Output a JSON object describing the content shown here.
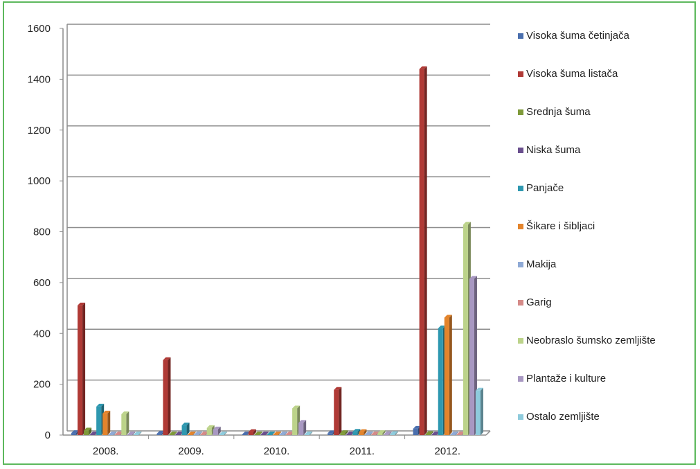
{
  "chart_data": {
    "type": "bar",
    "categories": [
      "2008.",
      "2009.",
      "2010.",
      "2011.",
      "2012."
    ],
    "ylim": [
      0,
      1600
    ],
    "yticks": [
      0,
      200,
      400,
      600,
      800,
      1000,
      1200,
      1400,
      1600
    ],
    "ytick_labels": [
      "0",
      "200",
      "400",
      "600",
      "800",
      "1000",
      "1200",
      "1400",
      "1600"
    ],
    "grid": true,
    "legend_position": "right",
    "series": [
      {
        "name": "Visoka šuma četinjača",
        "color": "#4a6fae",
        "values": [
          8,
          5,
          2,
          7,
          25
        ]
      },
      {
        "name": "Visoka šuma listača",
        "color": "#b03a36",
        "values": [
          510,
          295,
          12,
          178,
          1440
        ]
      },
      {
        "name": "Srednja šuma",
        "color": "#7f9a3a",
        "values": [
          18,
          1,
          1,
          8,
          4
        ]
      },
      {
        "name": "Niska šuma",
        "color": "#6a4f8e",
        "values": [
          2,
          1,
          1,
          2,
          1
        ]
      },
      {
        "name": "Panjače",
        "color": "#2e98b0",
        "values": [
          112,
          38,
          2,
          13,
          420
        ]
      },
      {
        "name": "Šikare i šibljaci",
        "color": "#e3842c",
        "values": [
          85,
          2,
          2,
          12,
          462
        ]
      },
      {
        "name": "Makija",
        "color": "#8faad6",
        "values": [
          1,
          0,
          0,
          1,
          0
        ]
      },
      {
        "name": "Garig",
        "color": "#d58a88",
        "values": [
          1,
          0,
          0,
          0,
          0
        ]
      },
      {
        "name": "Neobraslo šumsko zemljište",
        "color": "#bcd38a",
        "values": [
          82,
          28,
          105,
          8,
          828
        ]
      },
      {
        "name": "Plantaže i kulture",
        "color": "#a898c2",
        "values": [
          2,
          22,
          48,
          3,
          615
        ]
      },
      {
        "name": "Ostalo zemljište",
        "color": "#8ecbdc",
        "values": [
          2,
          1,
          3,
          4,
          175
        ]
      }
    ]
  }
}
